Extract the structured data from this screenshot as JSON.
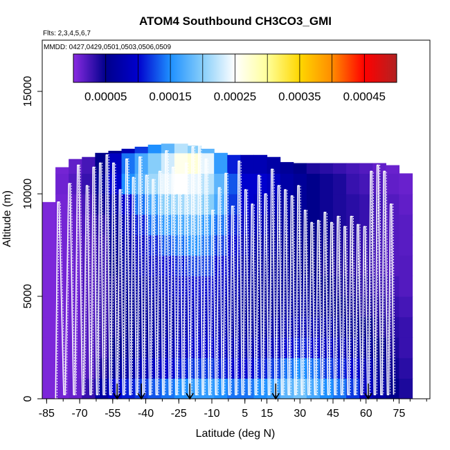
{
  "chart_data": {
    "type": "heatmap",
    "title": "ATOM4 Southbound CH3CO3_GMI",
    "flights_label": "Flts: 2,3,4,5,6,7",
    "dates_label": "MMDD: 0427,0429,0501,0503,0506,0509",
    "xlabel": "Latitude (deg N)",
    "ylabel": "Altitude (m)",
    "xlim": [
      -87,
      89
    ],
    "ylim": [
      0,
      17500
    ],
    "x_ticks": [
      -85,
      -70,
      -55,
      -40,
      -25,
      -10,
      5,
      15,
      30,
      45,
      60,
      75
    ],
    "x_tick_labels": [
      "-85",
      "-70",
      "-55",
      "-40",
      "-25",
      "-10",
      "5",
      "15",
      "30",
      "45",
      "60",
      "75"
    ],
    "y_ticks": [
      0,
      5000,
      10000,
      15000
    ],
    "y_tick_labels": [
      "0",
      "5000",
      "10000",
      "15000"
    ],
    "colorbar": {
      "min": 0.0,
      "max": 0.0005,
      "tick_values": [
        5e-05,
        0.00015,
        0.00025,
        0.00035,
        0.00045
      ],
      "tick_labels": [
        "0.00005",
        "0.00015",
        "0.00025",
        "0.00035",
        "0.00045"
      ],
      "colors": [
        "#8a2be2",
        "#00008b",
        "#0000cd",
        "#1e90ff",
        "#87cefa",
        "#ffffff",
        "#ffff99",
        "#ffd700",
        "#ff8c00",
        "#ff0000",
        "#b22222"
      ]
    },
    "profile_latitudes": [
      -80,
      -75,
      -71,
      -67,
      -64,
      -61,
      -58,
      -55,
      -52,
      -49,
      -46,
      -43,
      -40,
      -37,
      -34,
      -31,
      -28,
      -25,
      -22,
      -19,
      -16,
      -13,
      -10,
      -7,
      -4,
      -1,
      2,
      5,
      8,
      11,
      14,
      17,
      20,
      23,
      26,
      29,
      32,
      35,
      38,
      41,
      44,
      47,
      50,
      53,
      56,
      59,
      62,
      65,
      68,
      71
    ],
    "profile_tops_m": [
      9600,
      10500,
      11400,
      10400,
      11300,
      11500,
      11900,
      11500,
      10200,
      11700,
      10800,
      11800,
      10900,
      10700,
      11100,
      12100,
      11300,
      10400,
      11500,
      12300,
      12400,
      11700,
      9200,
      10300,
      11000,
      9400,
      11600,
      10200,
      9500,
      10900,
      10000,
      11200,
      10400,
      10200,
      9900,
      10400,
      9200,
      8600,
      8700,
      9100,
      8600,
      8900,
      8400,
      8900,
      8500,
      8400,
      11100,
      11400,
      11100,
      9500
    ],
    "model_top_m": [
      9600,
      10900,
      11300,
      11600,
      11700,
      11800,
      11900,
      12000,
      12050,
      12100,
      12150,
      12200,
      12250,
      12300,
      12350,
      12400,
      12450,
      12450,
      12450,
      12400,
      12350,
      12300,
      12200,
      12100,
      12000,
      11900,
      11900,
      11900,
      11900,
      11900,
      11900,
      11800,
      11600,
      11550,
      11500,
      11500,
      11500,
      11500,
      11500,
      11500,
      11500,
      11500,
      11500,
      11500,
      11500,
      11500,
      11500,
      11400,
      11300,
      11000
    ],
    "surface_markers_lat": [
      -53,
      -42,
      -20,
      19,
      61
    ],
    "grid_lat": [
      -87,
      -81,
      -75,
      -69,
      -63,
      -57,
      -51,
      -45,
      -39,
      -33,
      -27,
      -21,
      -15,
      -9,
      -3,
      3,
      9,
      15,
      21,
      27,
      33,
      39,
      45,
      51,
      57,
      63,
      69,
      75
    ],
    "grid_alt_bins_m": [
      0,
      1000,
      2000,
      3000,
      4000,
      5000,
      6000,
      7000,
      8000,
      9000,
      10000,
      11000,
      12000,
      13000
    ],
    "grid_values": [
      [
        5e-06,
        5e-06,
        5e-06,
        5e-06,
        5e-06,
        5e-06,
        5e-06,
        5e-06,
        5e-06,
        5e-06,
        5e-06,
        5e-06,
        5e-06
      ],
      [
        8e-06,
        8e-06,
        8e-06,
        8e-06,
        8e-06,
        8e-06,
        8e-06,
        8e-06,
        8e-06,
        8e-06,
        1e-05,
        8e-06,
        5e-06
      ],
      [
        1.2e-05,
        1e-05,
        1e-05,
        1e-05,
        1e-05,
        1e-05,
        1e-05,
        1.2e-05,
        1.2e-05,
        1.5e-05,
        2e-05,
        1.5e-05,
        1e-05
      ],
      [
        3e-05,
        2e-05,
        2e-05,
        2e-05,
        2e-05,
        2e-05,
        2e-05,
        2e-05,
        2.2e-05,
        2.5e-05,
        3e-05,
        2.5e-05,
        1.5e-05
      ],
      [
        7e-05,
        4e-05,
        3e-05,
        3e-05,
        3e-05,
        3e-05,
        3e-05,
        3e-05,
        3.5e-05,
        4.5e-05,
        6e-05,
        5e-05,
        3e-05
      ],
      [
        0.0001,
        6e-05,
        5e-05,
        4.5e-05,
        4.5e-05,
        4.5e-05,
        5e-05,
        5.5e-05,
        6e-05,
        7e-05,
        0.0001,
        9e-05,
        5e-05
      ],
      [
        0.00011,
        7e-05,
        6e-05,
        5.5e-05,
        5.5e-05,
        6e-05,
        6.5e-05,
        7e-05,
        8e-05,
        0.0001,
        0.00015,
        0.00014,
        8e-05
      ],
      [
        0.00012,
        8e-05,
        6.5e-05,
        6e-05,
        6e-05,
        6.5e-05,
        8e-05,
        9e-05,
        0.00011,
        0.00014,
        0.00018,
        0.00017,
        0.00012
      ],
      [
        0.00013,
        9e-05,
        7e-05,
        6.5e-05,
        6.5e-05,
        7.5e-05,
        9e-05,
        0.00011,
        0.00014,
        0.00017,
        0.00021,
        0.0002,
        0.00015
      ],
      [
        0.00014,
        0.0001,
        8e-05,
        7e-05,
        7.5e-05,
        8.5e-05,
        0.0001,
        0.00013,
        0.00016,
        0.0002,
        0.00024,
        0.00023,
        0.00018
      ],
      [
        0.00015,
        0.00011,
        9e-05,
        8e-05,
        8.5e-05,
        9.5e-05,
        0.00011,
        0.00014,
        0.00017,
        0.00021,
        0.00025,
        0.00026,
        0.00022
      ],
      [
        0.00016,
        0.00012,
        0.0001,
        9e-05,
        9e-05,
        0.0001,
        0.00012,
        0.00015,
        0.00018,
        0.00022,
        0.00024,
        0.00027,
        0.0002
      ],
      [
        0.00016,
        0.00012,
        0.0001,
        9e-05,
        9e-05,
        0.0001,
        0.00012,
        0.00014,
        0.00016,
        0.0002,
        0.00022,
        0.00024,
        0.00018
      ],
      [
        0.00015,
        0.00011,
        9e-05,
        8e-05,
        8e-05,
        9e-05,
        0.0001,
        0.00012,
        0.00014,
        0.00017,
        0.00018,
        0.00016,
        0.00012
      ],
      [
        0.00014,
        0.0001,
        8e-05,
        7e-05,
        7e-05,
        7.5e-05,
        8.5e-05,
        0.0001,
        0.00011,
        0.00012,
        0.00013,
        0.00011,
        8e-05
      ],
      [
        0.00014,
        0.0001,
        7.5e-05,
        6.5e-05,
        6e-05,
        6.5e-05,
        7e-05,
        8e-05,
        9e-05,
        0.0001,
        0.0001,
        8e-05,
        6e-05
      ],
      [
        0.00015,
        0.00011,
        8e-05,
        6.5e-05,
        6e-05,
        6e-05,
        6.5e-05,
        7e-05,
        8e-05,
        9e-05,
        0.0001,
        8e-05,
        6e-05
      ],
      [
        0.00016,
        0.00012,
        8.5e-05,
        7e-05,
        6e-05,
        6e-05,
        6e-05,
        6.5e-05,
        7e-05,
        8e-05,
        9e-05,
        7e-05,
        5e-05
      ],
      [
        0.00018,
        0.00014,
        0.0001,
        7.5e-05,
        6.5e-05,
        6e-05,
        6e-05,
        6e-05,
        6.5e-05,
        7e-05,
        7e-05,
        6e-05,
        4e-05
      ],
      [
        0.00019,
        0.00015,
        0.00011,
        8e-05,
        6.5e-05,
        6e-05,
        5.5e-05,
        5.5e-05,
        5.5e-05,
        6e-05,
        6e-05,
        5e-05,
        3.5e-05
      ],
      [
        0.00017,
        0.00014,
        0.0001,
        7.5e-05,
        6e-05,
        5.5e-05,
        5e-05,
        5e-05,
        5e-05,
        5e-05,
        5e-05,
        4e-05,
        3e-05
      ],
      [
        0.00015,
        0.00012,
        9e-05,
        7e-05,
        5.5e-05,
        5e-05,
        4.5e-05,
        4.5e-05,
        4.5e-05,
        4.5e-05,
        4.5e-05,
        3.5e-05,
        2.5e-05
      ],
      [
        0.00014,
        0.00011,
        8e-05,
        6e-05,
        5e-05,
        4.5e-05,
        4e-05,
        4e-05,
        4e-05,
        4e-05,
        4e-05,
        3e-05,
        2e-05
      ],
      [
        0.00012,
        0.0001,
        7e-05,
        5.5e-05,
        4.5e-05,
        4e-05,
        3.5e-05,
        3.5e-05,
        3.5e-05,
        3.5e-05,
        3e-05,
        2.5e-05,
        1.5e-05
      ],
      [
        9e-05,
        8e-05,
        6e-05,
        5e-05,
        4e-05,
        3.5e-05,
        3e-05,
        3e-05,
        3e-05,
        3e-05,
        2.5e-05,
        2e-05,
        1.2e-05
      ],
      [
        7e-05,
        6e-05,
        5e-05,
        4e-05,
        3.5e-05,
        3e-05,
        2.5e-05,
        2.5e-05,
        2.5e-05,
        2.5e-05,
        2e-05,
        1.5e-05,
        1e-05
      ],
      [
        5e-05,
        4.5e-05,
        4e-05,
        3.5e-05,
        3e-05,
        2.5e-05,
        2e-05,
        2e-05,
        2e-05,
        2e-05,
        1.5e-05,
        1.2e-05,
        8e-06
      ],
      [
        4e-05,
        3.5e-05,
        3e-05,
        3e-05,
        2.5e-05,
        2e-05,
        2e-05,
        1.8e-05,
        1.8e-05,
        1.5e-05,
        1.2e-05,
        1e-05,
        8e-06
      ]
    ]
  }
}
